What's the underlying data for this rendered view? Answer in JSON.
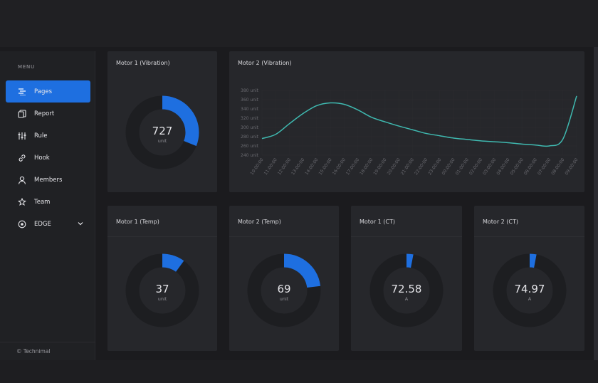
{
  "sidebar": {
    "menu_label": "MENU",
    "items": [
      {
        "label": "Pages",
        "icon": "pages-icon",
        "active": true
      },
      {
        "label": "Report",
        "icon": "report-icon"
      },
      {
        "label": "Rule",
        "icon": "rule-icon"
      },
      {
        "label": "Hook",
        "icon": "hook-icon"
      },
      {
        "label": "Members",
        "icon": "members-icon"
      },
      {
        "label": "Team",
        "icon": "team-icon"
      },
      {
        "label": "EDGE",
        "icon": "edge-icon",
        "has_dropdown": true
      }
    ],
    "footer": "© Technimal"
  },
  "colors": {
    "accent": "#1e6fe0",
    "line": "#3fb9b0",
    "track": "#1d1e21",
    "card": "#26272b"
  },
  "cards": {
    "m1_vibration": {
      "title": "Motor 1 (Vibration)",
      "value": "727",
      "unit": "unit",
      "fraction": 0.31
    },
    "m2_vibration": {
      "title": "Motor 2 (Vibration)"
    },
    "m1_temp": {
      "title": "Motor 1 (Temp)",
      "value": "37",
      "unit": "unit",
      "fraction": 0.1
    },
    "m2_temp": {
      "title": "Motor 2 (Temp)",
      "value": "69",
      "unit": "unit",
      "fraction": 0.23
    },
    "m1_ct": {
      "title": "Motor 1 (CT)",
      "value": "72.58",
      "unit": "A",
      "fraction": 0.03
    },
    "m2_ct": {
      "title": "Motor 2 (CT)",
      "value": "74.97",
      "unit": "A",
      "fraction": 0.03
    }
  },
  "chart_data": {
    "type": "line",
    "y_ticks": [
      "380 unit",
      "360 unit",
      "340 unit",
      "320 unit",
      "300 unit",
      "280 unit",
      "260 unit",
      "240 unit"
    ],
    "x": [
      "10:00:00",
      "11:00:00",
      "12:00:00",
      "13:00:00",
      "14:00:00",
      "15:00:00",
      "16:00:00",
      "17:00:00",
      "18:00:00",
      "19:00:00",
      "20:00:00",
      "21:00:00",
      "22:00:00",
      "23:00:00",
      "00:00:00",
      "01:00:00",
      "02:00:00",
      "03:00:00",
      "04:00:00",
      "05:00:00",
      "06:00:00",
      "07:00:00",
      "08:00:00",
      "09:00:00"
    ],
    "values": [
      276,
      285,
      308,
      330,
      347,
      353,
      350,
      338,
      322,
      312,
      303,
      295,
      287,
      282,
      277,
      274,
      271,
      269,
      267,
      264,
      262,
      260,
      275,
      368
    ],
    "ylim": [
      240,
      380
    ],
    "grid": true
  }
}
